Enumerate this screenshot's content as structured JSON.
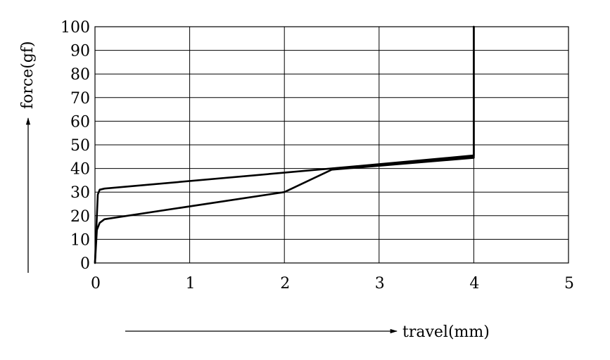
{
  "chart_data": {
    "type": "line",
    "title": "",
    "xlabel": "travel(mm)",
    "ylabel": "force(gf)",
    "xlim": [
      0,
      5
    ],
    "ylim": [
      0,
      100
    ],
    "x_ticks": [
      "0",
      "1",
      "2",
      "3",
      "4",
      "5"
    ],
    "y_ticks": [
      "0",
      "10",
      "20",
      "30",
      "40",
      "50",
      "60",
      "70",
      "80",
      "90",
      "100"
    ],
    "grid": true,
    "legend": "none",
    "series": [
      {
        "x": [
          0,
          0.02,
          0.03,
          0.05,
          0.1,
          2.5,
          4.0,
          4.0
        ],
        "y": [
          0,
          20,
          29,
          31,
          31.5,
          40,
          45.5,
          100
        ]
      },
      {
        "x": [
          0,
          0.02,
          0.05,
          0.1,
          2.0,
          2.5,
          4.0,
          4.0
        ],
        "y": [
          0,
          14,
          17,
          18.5,
          30,
          39.5,
          44.5,
          100
        ]
      },
      {
        "x": [
          2.5,
          4.0
        ],
        "y": [
          40,
          45
        ]
      }
    ]
  }
}
